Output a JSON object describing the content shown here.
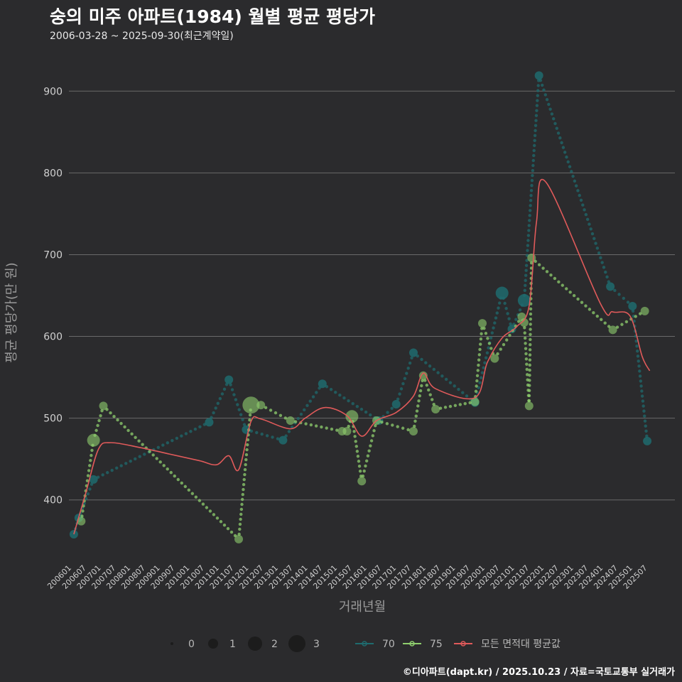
{
  "header": {
    "title": "숭의 미주 아파트(1984) 월별 평균 평당가",
    "subtitle": "2006-03-28 ~ 2025-09-30(최근계약일)"
  },
  "footer": {
    "credit": "©디아파트(dapt.kr) / 2025.10.23 / 자료=국토교통부 실거래가"
  },
  "colors": {
    "background": "#2b2b2d",
    "grid": "#6a6a6a",
    "series_70": "#1f6b6e",
    "series_75": "#8fcf6e",
    "average": "#e05a5a"
  },
  "chart_data": {
    "type": "line",
    "title": "숭의 미주 아파트(1984) 월별 평균 평당가",
    "xlabel": "거래년월",
    "ylabel": "평균 평당가(만 원)",
    "ylim": [
      325,
      935
    ],
    "yticks": [
      400,
      500,
      600,
      700,
      800,
      900
    ],
    "x_domain": [
      "2006-01",
      "2025-10"
    ],
    "x_ticks": [
      "200601",
      "200607",
      "200701",
      "200707",
      "200801",
      "200807",
      "200901",
      "200907",
      "201001",
      "201007",
      "201101",
      "201107",
      "201201",
      "201207",
      "201301",
      "201307",
      "201401",
      "201407",
      "201501",
      "201507",
      "201601",
      "201607",
      "201701",
      "201707",
      "201801",
      "201807",
      "201901",
      "201907",
      "202001",
      "202007",
      "202101",
      "202107",
      "202201",
      "202207",
      "202301",
      "202307",
      "202401",
      "202407",
      "202501",
      "202507"
    ],
    "size_legend": {
      "title": "",
      "values": [
        "0",
        "1",
        "2",
        "3"
      ]
    },
    "color_legend": [
      "70",
      "75",
      "모든 면적대 평균값"
    ],
    "series": [
      {
        "name": "70",
        "color": "#1f6b6e",
        "points": [
          {
            "date": "2006-03",
            "value": 358,
            "count": 1
          },
          {
            "date": "2006-05",
            "value": 378,
            "count": 1
          },
          {
            "date": "2006-11",
            "value": 425,
            "count": 1
          },
          {
            "date": "2010-10",
            "value": 495,
            "count": 1
          },
          {
            "date": "2011-06",
            "value": 547,
            "count": 1
          },
          {
            "date": "2012-01",
            "value": 486,
            "count": 1
          },
          {
            "date": "2013-04",
            "value": 473,
            "count": 1
          },
          {
            "date": "2014-08",
            "value": 542,
            "count": 1
          },
          {
            "date": "2016-07",
            "value": 497,
            "count": 1
          },
          {
            "date": "2017-02",
            "value": 517,
            "count": 1
          },
          {
            "date": "2017-09",
            "value": 580,
            "count": 1
          },
          {
            "date": "2019-10",
            "value": 519,
            "count": 1
          },
          {
            "date": "2020-09",
            "value": 653,
            "count": 2
          },
          {
            "date": "2021-01",
            "value": 609,
            "count": 1
          },
          {
            "date": "2021-06",
            "value": 644,
            "count": 2
          },
          {
            "date": "2021-12",
            "value": 919,
            "count": 1
          },
          {
            "date": "2024-05",
            "value": 661,
            "count": 1
          },
          {
            "date": "2025-02",
            "value": 637,
            "count": 1
          },
          {
            "date": "2025-08",
            "value": 472,
            "count": 1
          }
        ]
      },
      {
        "name": "75",
        "color": "#8fcf6e",
        "points": [
          {
            "date": "2006-06",
            "value": 374,
            "count": 1
          },
          {
            "date": "2006-11",
            "value": 473,
            "count": 2
          },
          {
            "date": "2007-03",
            "value": 515,
            "count": 1
          },
          {
            "date": "2011-10",
            "value": 352,
            "count": 1
          },
          {
            "date": "2012-03",
            "value": 516,
            "count": 3
          },
          {
            "date": "2012-07",
            "value": 516,
            "count": 1
          },
          {
            "date": "2013-07",
            "value": 497,
            "count": 1
          },
          {
            "date": "2015-04",
            "value": 484,
            "count": 1
          },
          {
            "date": "2015-06",
            "value": 484,
            "count": 1
          },
          {
            "date": "2015-08",
            "value": 502,
            "count": 2
          },
          {
            "date": "2015-12",
            "value": 423,
            "count": 1
          },
          {
            "date": "2016-06",
            "value": 497,
            "count": 1
          },
          {
            "date": "2017-09",
            "value": 484,
            "count": 1
          },
          {
            "date": "2018-01",
            "value": 552,
            "count": 1
          },
          {
            "date": "2018-06",
            "value": 511,
            "count": 1
          },
          {
            "date": "2019-10",
            "value": 520,
            "count": 1
          },
          {
            "date": "2020-01",
            "value": 616,
            "count": 1
          },
          {
            "date": "2020-06",
            "value": 573,
            "count": 1
          },
          {
            "date": "2021-05",
            "value": 624,
            "count": 1
          },
          {
            "date": "2021-06",
            "value": 617,
            "count": 1
          },
          {
            "date": "2021-08",
            "value": 515,
            "count": 1
          },
          {
            "date": "2021-09",
            "value": 696,
            "count": 1
          },
          {
            "date": "2024-06",
            "value": 608,
            "count": 1
          },
          {
            "date": "2025-07",
            "value": 631,
            "count": 1
          }
        ]
      },
      {
        "name": "모든 면적대 평균값",
        "color": "#e05a5a",
        "points": [
          {
            "date": "2006-03",
            "value": 358
          },
          {
            "date": "2006-08",
            "value": 410
          },
          {
            "date": "2007-01",
            "value": 462
          },
          {
            "date": "2007-06",
            "value": 470
          },
          {
            "date": "2008-06",
            "value": 464
          },
          {
            "date": "2009-06",
            "value": 456
          },
          {
            "date": "2010-06",
            "value": 448
          },
          {
            "date": "2011-01",
            "value": 443
          },
          {
            "date": "2011-06",
            "value": 454
          },
          {
            "date": "2011-10",
            "value": 437
          },
          {
            "date": "2012-03",
            "value": 496
          },
          {
            "date": "2012-07",
            "value": 499
          },
          {
            "date": "2013-07",
            "value": 487
          },
          {
            "date": "2014-01",
            "value": 500
          },
          {
            "date": "2014-09",
            "value": 513
          },
          {
            "date": "2015-06",
            "value": 503
          },
          {
            "date": "2015-12",
            "value": 478
          },
          {
            "date": "2016-06",
            "value": 497
          },
          {
            "date": "2017-02",
            "value": 507
          },
          {
            "date": "2017-09",
            "value": 527
          },
          {
            "date": "2018-01",
            "value": 555
          },
          {
            "date": "2018-06",
            "value": 536
          },
          {
            "date": "2019-10",
            "value": 525
          },
          {
            "date": "2020-03",
            "value": 568
          },
          {
            "date": "2020-09",
            "value": 598
          },
          {
            "date": "2021-03",
            "value": 612
          },
          {
            "date": "2021-08",
            "value": 637
          },
          {
            "date": "2021-11",
            "value": 740
          },
          {
            "date": "2022-03",
            "value": 788
          },
          {
            "date": "2024-01",
            "value": 640
          },
          {
            "date": "2024-06",
            "value": 630
          },
          {
            "date": "2025-01",
            "value": 625
          },
          {
            "date": "2025-06",
            "value": 575
          },
          {
            "date": "2025-09",
            "value": 558
          }
        ]
      }
    ]
  }
}
